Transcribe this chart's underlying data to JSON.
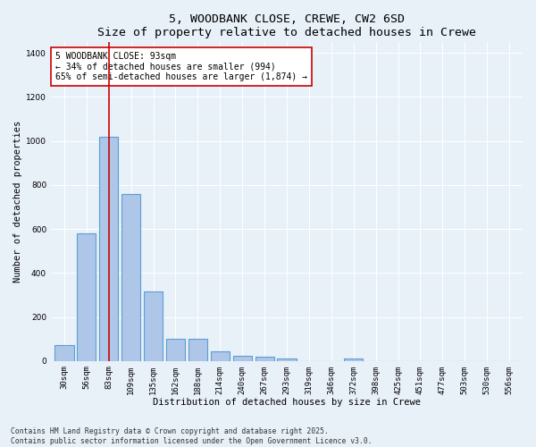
{
  "title": "5, WOODBANK CLOSE, CREWE, CW2 6SD",
  "subtitle": "Size of property relative to detached houses in Crewe",
  "xlabel": "Distribution of detached houses by size in Crewe",
  "ylabel": "Number of detached properties",
  "categories": [
    "30sqm",
    "56sqm",
    "83sqm",
    "109sqm",
    "135sqm",
    "162sqm",
    "188sqm",
    "214sqm",
    "240sqm",
    "267sqm",
    "293sqm",
    "319sqm",
    "346sqm",
    "372sqm",
    "398sqm",
    "425sqm",
    "451sqm",
    "477sqm",
    "503sqm",
    "530sqm",
    "556sqm"
  ],
  "values": [
    70,
    580,
    1020,
    760,
    315,
    100,
    100,
    45,
    25,
    20,
    10,
    0,
    0,
    10,
    0,
    0,
    0,
    0,
    0,
    0,
    0
  ],
  "bar_color": "#aec6e8",
  "bar_edge_color": "#5a9fd4",
  "vline_x_idx": 2,
  "vline_color": "#cc0000",
  "annotation_text": "5 WOODBANK CLOSE: 93sqm\n← 34% of detached houses are smaller (994)\n65% of semi-detached houses are larger (1,874) →",
  "annotation_box_color": "#ffffff",
  "annotation_box_edge": "#cc0000",
  "ylim": [
    0,
    1450
  ],
  "yticks": [
    0,
    200,
    400,
    600,
    800,
    1000,
    1200,
    1400
  ],
  "bg_color": "#e8f0f8",
  "plot_bg_color": "#e8f0f8",
  "footer": "Contains HM Land Registry data © Crown copyright and database right 2025.\nContains public sector information licensed under the Open Government Licence v3.0.",
  "title_fontsize": 9.5,
  "label_fontsize": 7.5,
  "tick_fontsize": 6.5,
  "annotation_fontsize": 7,
  "footer_fontsize": 5.8
}
